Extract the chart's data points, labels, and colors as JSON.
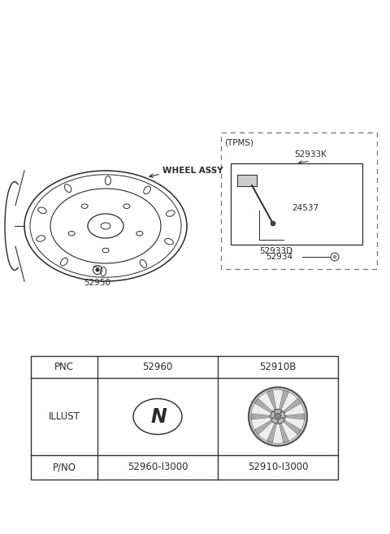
{
  "bg_color": "#ffffff",
  "fig_width": 4.8,
  "fig_height": 6.57,
  "dpi": 100,
  "wheel_assy_label": "WHEEL ASSY",
  "part_52950": "52950",
  "tpms_label": "(TPMS)",
  "part_52933K": "52933K",
  "part_24537": "24537",
  "part_52933D": "52933D",
  "part_52934": "52934",
  "pnc_label": "PNC",
  "illust_label": "ILLUST",
  "pno_label": "P/NO",
  "col2_pnc": "52960",
  "col3_pnc": "52910B",
  "col2_pno": "52960-I3000",
  "col3_pno": "52910-I3000",
  "line_color": "#2a2a2a",
  "dashed_color": "#777777",
  "table_border_color": "#333333",
  "light_gray": "#cccccc",
  "mid_gray": "#999999",
  "dark_gray": "#555555"
}
